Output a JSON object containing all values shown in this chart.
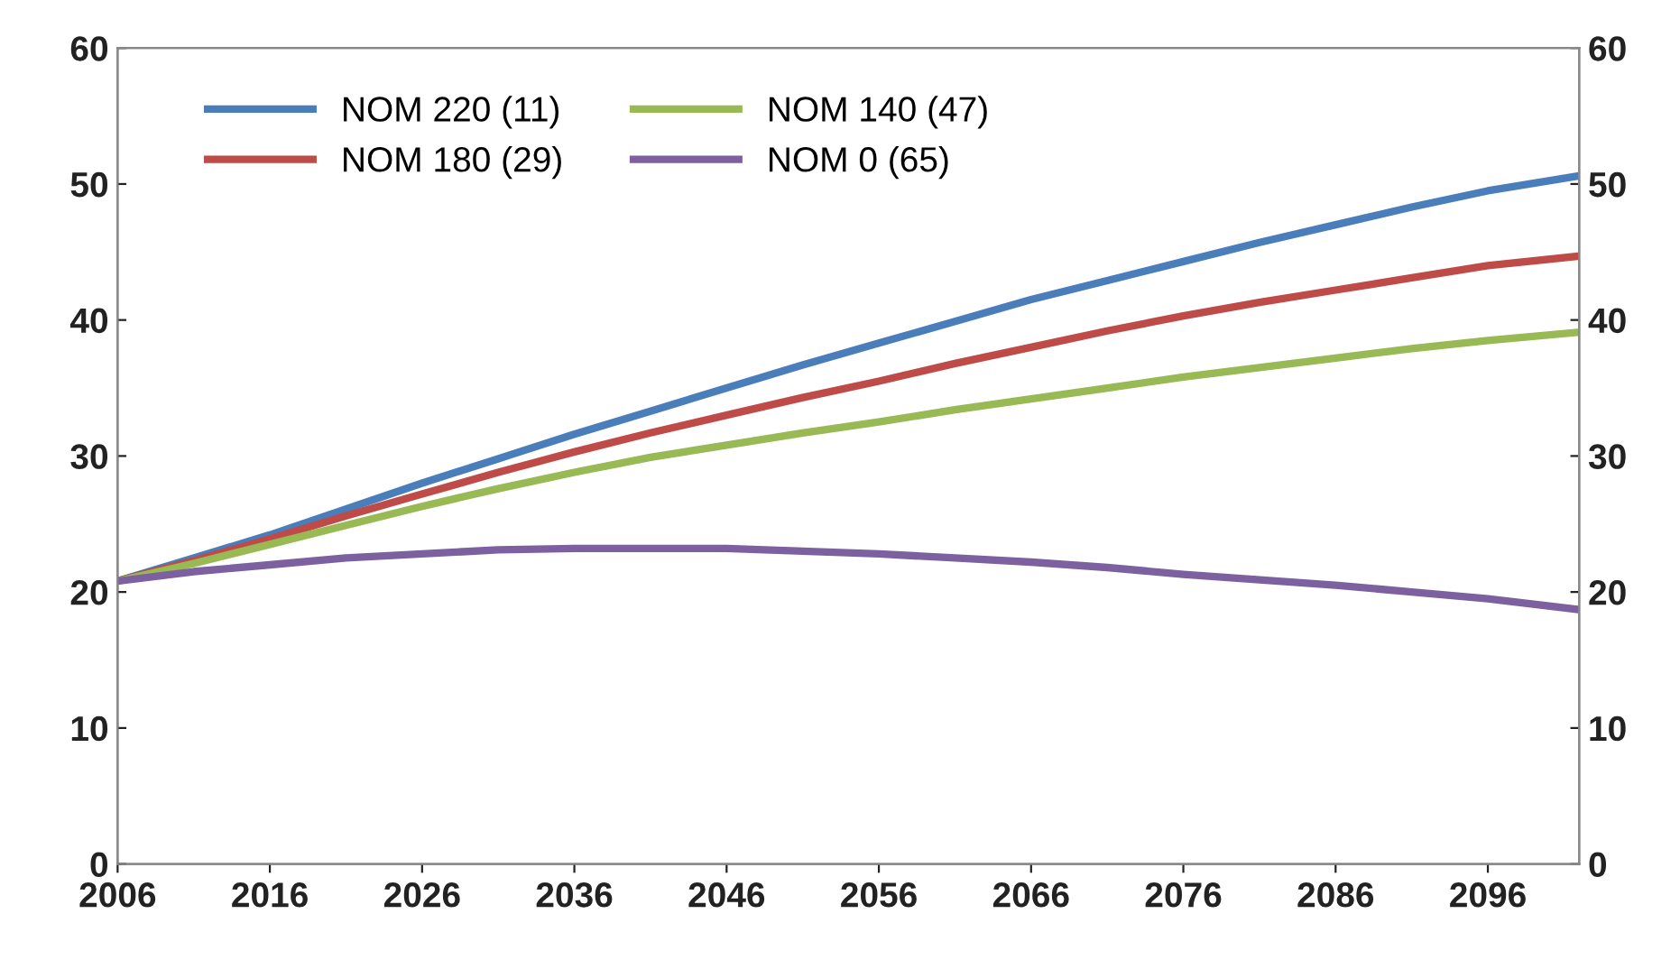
{
  "chart_data": {
    "type": "line",
    "x": [
      2006,
      2011,
      2016,
      2021,
      2026,
      2031,
      2036,
      2041,
      2046,
      2051,
      2056,
      2061,
      2066,
      2071,
      2076,
      2081,
      2086,
      2091,
      2096,
      2102
    ],
    "series": [
      {
        "name": "NOM 220 (11)",
        "color": "#4a7ebb",
        "values": [
          20.8,
          22.5,
          24.2,
          26.1,
          28,
          29.8,
          31.6,
          33.3,
          35,
          36.7,
          38.3,
          39.9,
          41.5,
          42.9,
          44.3,
          45.7,
          47,
          48.3,
          49.5,
          50.6
        ]
      },
      {
        "name": "NOM 180 (29)",
        "color": "#be4b48",
        "values": [
          20.8,
          22.3,
          23.9,
          25.6,
          27.2,
          28.8,
          30.3,
          31.7,
          33,
          34.3,
          35.5,
          36.8,
          38,
          39.2,
          40.3,
          41.3,
          42.2,
          43.1,
          44,
          44.7
        ]
      },
      {
        "name": "NOM 140 (47)",
        "color": "#98b954",
        "values": [
          20.8,
          22.1,
          23.5,
          24.9,
          26.3,
          27.6,
          28.8,
          29.9,
          30.8,
          31.7,
          32.5,
          33.4,
          34.2,
          35,
          35.8,
          36.5,
          37.2,
          37.9,
          38.5,
          39.1
        ]
      },
      {
        "name": "NOM 0 (65)",
        "color": "#7d60a0",
        "values": [
          20.8,
          21.5,
          22,
          22.5,
          22.8,
          23.1,
          23.2,
          23.2,
          23.2,
          23,
          22.8,
          22.5,
          22.2,
          21.8,
          21.3,
          20.9,
          20.5,
          20,
          19.5,
          18.7
        ]
      }
    ],
    "xlim": [
      2006,
      2102
    ],
    "xticks": [
      2006,
      2016,
      2026,
      2036,
      2046,
      2056,
      2066,
      2076,
      2086,
      2096
    ],
    "ylim": [
      0,
      60
    ],
    "yticks": [
      0,
      10,
      20,
      30,
      40,
      50,
      60
    ],
    "y2lim": [
      0,
      60
    ],
    "y2ticks": [
      0,
      10,
      20,
      30,
      40,
      50,
      60
    ],
    "grid": false,
    "legend": "top left",
    "marker": "none",
    "line_style": "solid"
  }
}
